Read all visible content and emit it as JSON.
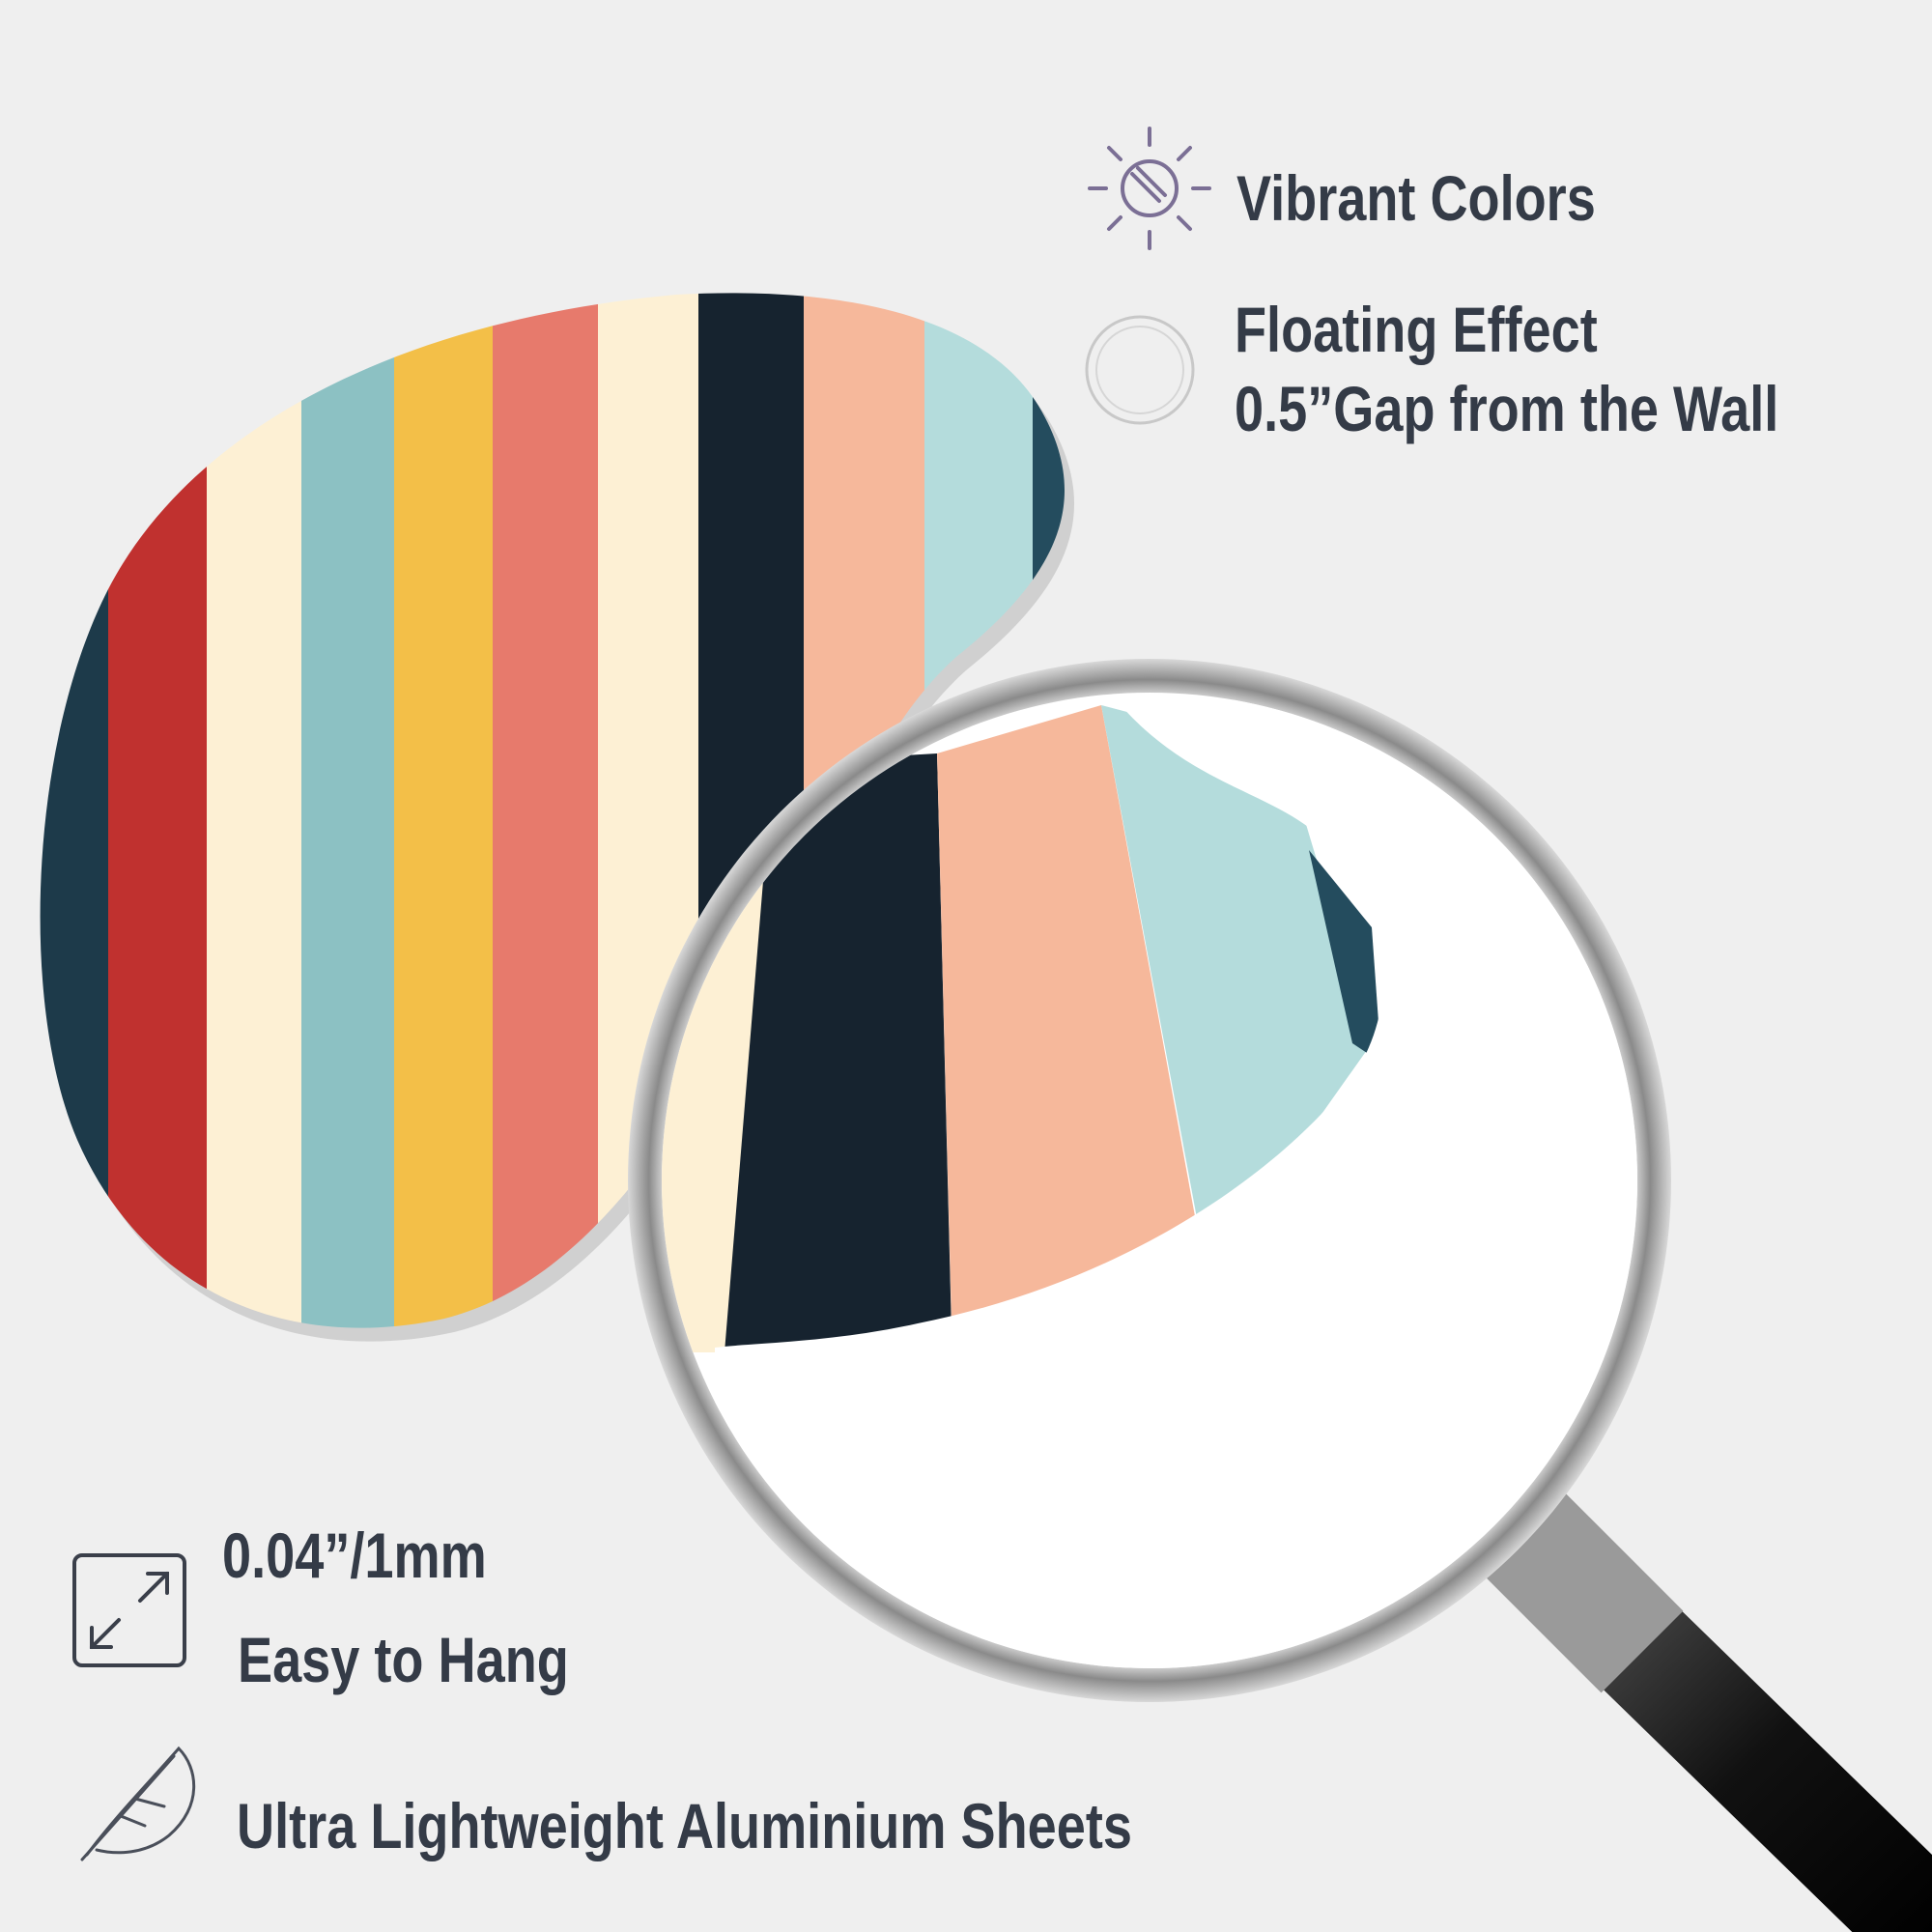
{
  "features": [
    {
      "lines": [
        "Vibrant Colors"
      ]
    },
    {
      "lines": [
        "Floating Effect",
        "0.5”Gap from the Wall"
      ]
    },
    {
      "lines": [
        "0.04”/1mm",
        "Easy to Hang"
      ]
    },
    {
      "lines": [
        "Ultra Lightweight Aluminium Sheets"
      ]
    }
  ]
}
